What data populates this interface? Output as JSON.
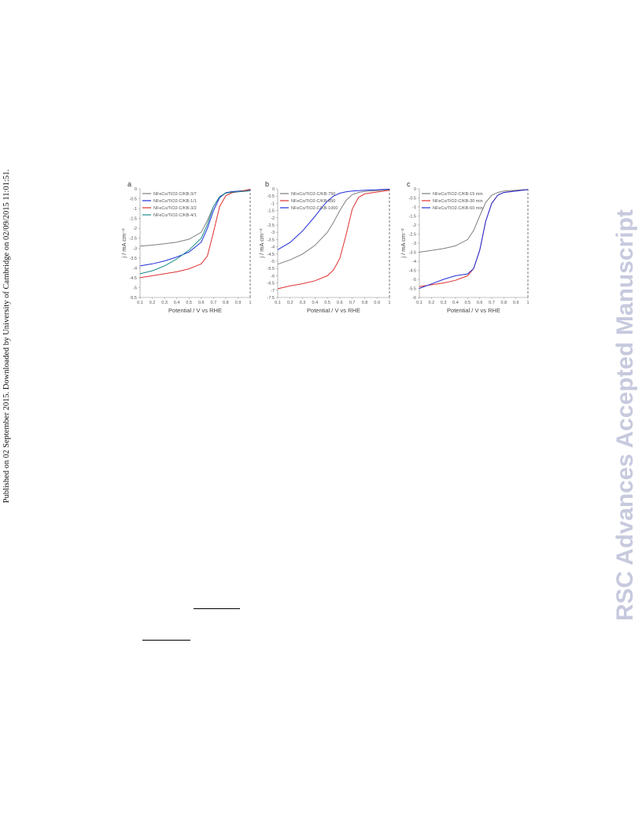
{
  "sidebar": {
    "text": "Published on 02 September 2015. Downloaded by University of Cambridge on 02/09/2015 11:01:51."
  },
  "watermark": {
    "text": "RSC Advances Accepted Manuscript",
    "color": "#c7c9de"
  },
  "chart_data": [
    {
      "type": "line",
      "panel_label": "a",
      "xlabel": "Potential / V vs RHE",
      "ylabel": "j / mA cm⁻²",
      "xlim": [
        0.1,
        1.0
      ],
      "ylim": [
        -5.5,
        0
      ],
      "yticks": [
        0,
        -0.5,
        -1.0,
        -1.5,
        -2.0,
        -2.5,
        -3.0,
        -3.5,
        -4.0,
        -4.5,
        -5.0,
        -5.5
      ],
      "xticks": [
        0.1,
        0.2,
        0.3,
        0.4,
        0.5,
        0.6,
        0.7,
        0.8,
        0.9,
        1.0
      ],
      "legend_position": "top-left",
      "series": [
        {
          "name": "NFeCo/TiO2-C/KB-3/7",
          "color": "#7f7f7f",
          "x": [
            0.1,
            0.2,
            0.3,
            0.4,
            0.5,
            0.6,
            0.65,
            0.7,
            0.75,
            0.8,
            0.85,
            0.9,
            0.95,
            1.0
          ],
          "y": [
            -2.9,
            -2.85,
            -2.78,
            -2.7,
            -2.55,
            -2.2,
            -1.6,
            -0.9,
            -0.4,
            -0.2,
            -0.15,
            -0.12,
            -0.08,
            -0.02
          ]
        },
        {
          "name": "NFeCo/TiO2-C/KB-1/1",
          "color": "#1f2fd8",
          "x": [
            0.1,
            0.2,
            0.3,
            0.4,
            0.5,
            0.6,
            0.65,
            0.7,
            0.75,
            0.8,
            0.85,
            0.9,
            0.95,
            1.0
          ],
          "y": [
            -3.9,
            -3.8,
            -3.65,
            -3.45,
            -3.2,
            -2.7,
            -2.0,
            -1.1,
            -0.45,
            -0.2,
            -0.14,
            -0.12,
            -0.1,
            -0.05
          ]
        },
        {
          "name": "NFeCo/TiO2-C/KB-3/2",
          "color": "#e03030",
          "x": [
            0.1,
            0.2,
            0.3,
            0.4,
            0.5,
            0.6,
            0.65,
            0.7,
            0.75,
            0.8,
            0.85,
            0.9,
            0.95,
            1.0
          ],
          "y": [
            -4.5,
            -4.4,
            -4.3,
            -4.2,
            -4.05,
            -3.8,
            -3.4,
            -2.2,
            -0.9,
            -0.35,
            -0.2,
            -0.15,
            -0.1,
            -0.03
          ]
        },
        {
          "name": "NFeCo/TiO2-C/KB-4/1",
          "color": "#1a8c8c",
          "x": [
            0.1,
            0.2,
            0.3,
            0.4,
            0.5,
            0.6,
            0.65,
            0.7,
            0.75,
            0.8,
            0.85,
            0.9,
            0.95,
            1.0
          ],
          "y": [
            -4.3,
            -4.15,
            -3.9,
            -3.55,
            -3.1,
            -2.5,
            -1.8,
            -0.9,
            -0.4,
            -0.22,
            -0.17,
            -0.15,
            -0.13,
            -0.1
          ]
        }
      ]
    },
    {
      "type": "line",
      "panel_label": "b",
      "xlabel": "Potential / V vs RHE",
      "ylabel": "j / mA cm⁻²",
      "xlim": [
        0.1,
        1.0
      ],
      "ylim": [
        -7.5,
        0
      ],
      "yticks": [
        0,
        -0.5,
        -1.0,
        -1.5,
        -2.0,
        -2.5,
        -3.0,
        -3.5,
        -4.0,
        -4.5,
        -5.0,
        -5.5,
        -6.0,
        -6.5,
        -7.0,
        -7.5
      ],
      "xticks": [
        0.1,
        0.2,
        0.3,
        0.4,
        0.5,
        0.6,
        0.7,
        0.8,
        0.9,
        1.0
      ],
      "legend_position": "top-left",
      "series": [
        {
          "name": "NFeCo/TiO2-C/KB-750",
          "color": "#7f7f7f",
          "x": [
            0.1,
            0.2,
            0.3,
            0.4,
            0.5,
            0.55,
            0.6,
            0.65,
            0.7,
            0.75,
            0.8,
            0.9,
            1.0
          ],
          "y": [
            -5.2,
            -4.9,
            -4.5,
            -3.9,
            -3.0,
            -2.3,
            -1.5,
            -0.8,
            -0.4,
            -0.25,
            -0.18,
            -0.12,
            -0.05
          ]
        },
        {
          "name": "NFeCo/TiO2-C/KB-850",
          "color": "#e03030",
          "x": [
            0.1,
            0.2,
            0.3,
            0.4,
            0.5,
            0.55,
            0.6,
            0.65,
            0.7,
            0.75,
            0.8,
            0.9,
            1.0
          ],
          "y": [
            -6.9,
            -6.7,
            -6.55,
            -6.35,
            -6.0,
            -5.6,
            -4.8,
            -3.2,
            -1.4,
            -0.6,
            -0.35,
            -0.22,
            -0.1
          ]
        },
        {
          "name": "NFeCo/TiO2-C/KB-1000",
          "color": "#1f2fd8",
          "x": [
            0.1,
            0.2,
            0.3,
            0.4,
            0.45,
            0.5,
            0.55,
            0.6,
            0.65,
            0.7,
            0.8,
            0.9,
            1.0
          ],
          "y": [
            -4.2,
            -3.7,
            -2.9,
            -1.9,
            -1.35,
            -0.85,
            -0.5,
            -0.3,
            -0.2,
            -0.15,
            -0.1,
            -0.06,
            -0.02
          ]
        }
      ]
    },
    {
      "type": "line",
      "panel_label": "c",
      "xlabel": "Potential / V vs RHE",
      "ylabel": "j / mA cm⁻²",
      "xlim": [
        0.1,
        1.0
      ],
      "ylim": [
        -6.0,
        0
      ],
      "yticks": [
        0,
        -0.5,
        -1.0,
        -1.5,
        -2.0,
        -2.5,
        -3.0,
        -3.5,
        -4.0,
        -4.5,
        -5.0,
        -5.5,
        -6.0
      ],
      "xticks": [
        0.1,
        0.2,
        0.3,
        0.4,
        0.5,
        0.6,
        0.7,
        0.8,
        0.9,
        1.0
      ],
      "legend_position": "top-left",
      "series": [
        {
          "name": "NFeCo/TiO2-C/KB-15 min",
          "color": "#7f7f7f",
          "x": [
            0.1,
            0.2,
            0.3,
            0.4,
            0.5,
            0.55,
            0.6,
            0.65,
            0.7,
            0.75,
            0.8,
            0.9,
            1.0
          ],
          "y": [
            -3.5,
            -3.4,
            -3.3,
            -3.15,
            -2.8,
            -2.3,
            -1.5,
            -0.75,
            -0.35,
            -0.2,
            -0.12,
            -0.08,
            -0.03
          ]
        },
        {
          "name": "NFeCo/TiO2-C/KB-30 min",
          "color": "#e03030",
          "x": [
            0.1,
            0.2,
            0.3,
            0.4,
            0.5,
            0.55,
            0.6,
            0.65,
            0.7,
            0.75,
            0.8,
            0.9,
            1.0
          ],
          "y": [
            -5.4,
            -5.3,
            -5.2,
            -5.05,
            -4.8,
            -4.4,
            -3.4,
            -1.8,
            -0.8,
            -0.35,
            -0.2,
            -0.12,
            -0.04
          ]
        },
        {
          "name": "NFeCo/TiO2-C/KB-60 min",
          "color": "#1f2fd8",
          "x": [
            0.1,
            0.2,
            0.3,
            0.4,
            0.45,
            0.5,
            0.55,
            0.6,
            0.65,
            0.7,
            0.75,
            0.8,
            0.9,
            1.0
          ],
          "y": [
            -5.5,
            -5.25,
            -5.0,
            -4.8,
            -4.75,
            -4.7,
            -4.4,
            -3.4,
            -1.8,
            -0.8,
            -0.35,
            -0.2,
            -0.12,
            -0.04
          ]
        }
      ]
    }
  ],
  "rules": [
    "",
    ""
  ]
}
